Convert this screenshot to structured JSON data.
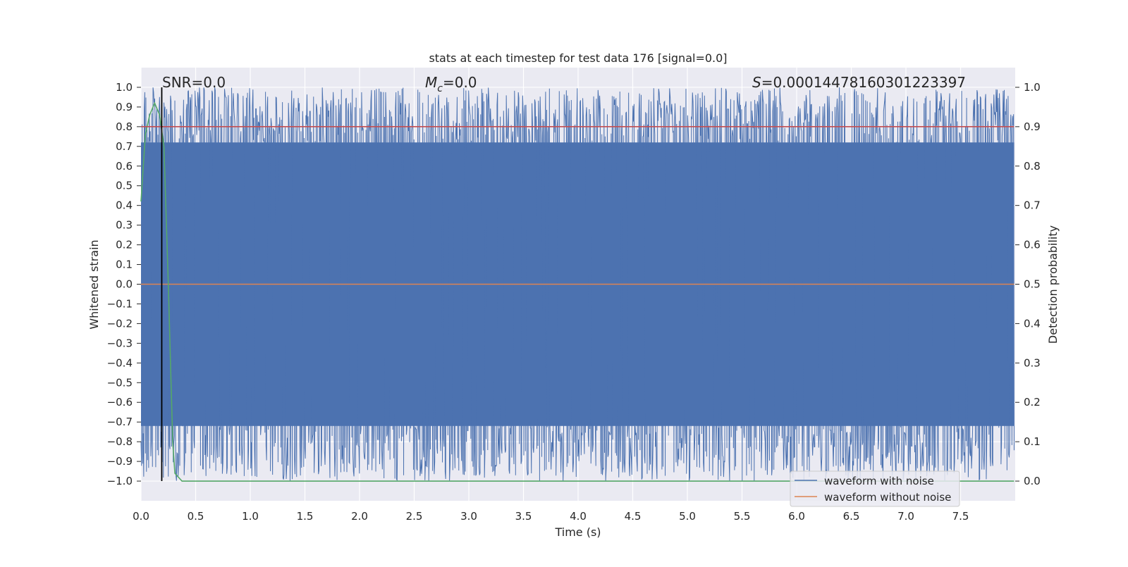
{
  "chart_data": {
    "type": "line",
    "title": "stats at each timestep for test data 176 [signal=0.0]",
    "xlabel": "Time (s)",
    "ylabel": "Whitened strain",
    "ylabel_right": "Detection probability",
    "xlim": [
      0.0,
      8.0
    ],
    "ylim": [
      -1.1,
      1.1
    ],
    "ylim_right": [
      -0.05,
      1.05
    ],
    "x_ticks": [
      0.0,
      0.5,
      1.0,
      1.5,
      2.0,
      2.5,
      3.0,
      3.5,
      4.0,
      4.5,
      5.0,
      5.5,
      6.0,
      6.5,
      7.0,
      7.5
    ],
    "x_tick_labels": [
      "0.0",
      "0.5",
      "1.0",
      "1.5",
      "2.0",
      "2.5",
      "3.0",
      "3.5",
      "4.0",
      "4.5",
      "5.0",
      "5.5",
      "6.0",
      "6.5",
      "7.0",
      "7.5"
    ],
    "y_ticks": [
      1.0,
      0.9,
      0.8,
      0.7,
      0.6,
      0.5,
      0.4,
      0.3,
      0.2,
      0.1,
      0.0,
      -0.1,
      -0.2,
      -0.3,
      -0.4,
      -0.5,
      -0.6,
      -0.7,
      -0.8,
      -0.9,
      -1.0
    ],
    "y_tick_labels": [
      "1.0",
      "0.9",
      "0.8",
      "0.7",
      "0.6",
      "0.5",
      "0.4",
      "0.3",
      "0.2",
      "0.1",
      "0.0",
      "−0.1",
      "−0.2",
      "−0.3",
      "−0.4",
      "−0.5",
      "−0.6",
      "−0.7",
      "−0.8",
      "−0.9",
      "−1.0"
    ],
    "y_right_ticks": [
      1.0,
      0.9,
      0.8,
      0.7,
      0.6,
      0.5,
      0.4,
      0.3,
      0.2,
      0.1,
      0.0
    ],
    "y_right_tick_labels": [
      "1.0",
      "0.9",
      "0.8",
      "0.7",
      "0.6",
      "0.5",
      "0.4",
      "0.3",
      "0.2",
      "0.1",
      "0.0"
    ],
    "grid": true,
    "annotations": {
      "snr": "SNR=0.0",
      "mc_symbol": "M",
      "mc_sub": "c",
      "mc_value": "=0.0",
      "s_symbol": "S",
      "s_value": "=0.00014478160301223397"
    },
    "legend": {
      "placement": "lower-right",
      "entries": [
        "waveform with noise",
        "waveform without noise"
      ]
    },
    "series": [
      {
        "name": "waveform with noise",
        "color": "#4c72b0",
        "description_kind": "dense noise filling approximately -1.0 to 1.0 across the full time range",
        "x_range": [
          0.0,
          7.99
        ],
        "y_range": [
          -1.0,
          1.0
        ]
      },
      {
        "name": "waveform without noise",
        "color": "#dd8452",
        "x": [
          0.0,
          7.99
        ],
        "y": [
          0.0,
          0.0
        ]
      },
      {
        "axis": "right",
        "color": "#55a868",
        "x": [
          0.0,
          0.04,
          0.08,
          0.125,
          0.17,
          0.21,
          0.25,
          0.29,
          0.31,
          0.375,
          7.99
        ],
        "y": [
          0.71,
          0.88,
          0.93,
          0.96,
          0.93,
          0.85,
          0.5,
          0.1,
          0.02,
          0.0,
          0.0
        ]
      },
      {
        "axis": "right",
        "color": "#c44e52",
        "x": [
          0.0,
          7.99
        ],
        "y": [
          0.9,
          0.9
        ]
      }
    ],
    "vline": {
      "x": 0.19,
      "color": "#000000"
    },
    "colors": {
      "plot_background": "#eaeaf2",
      "grid": "#ffffff",
      "text": "#262626"
    }
  }
}
